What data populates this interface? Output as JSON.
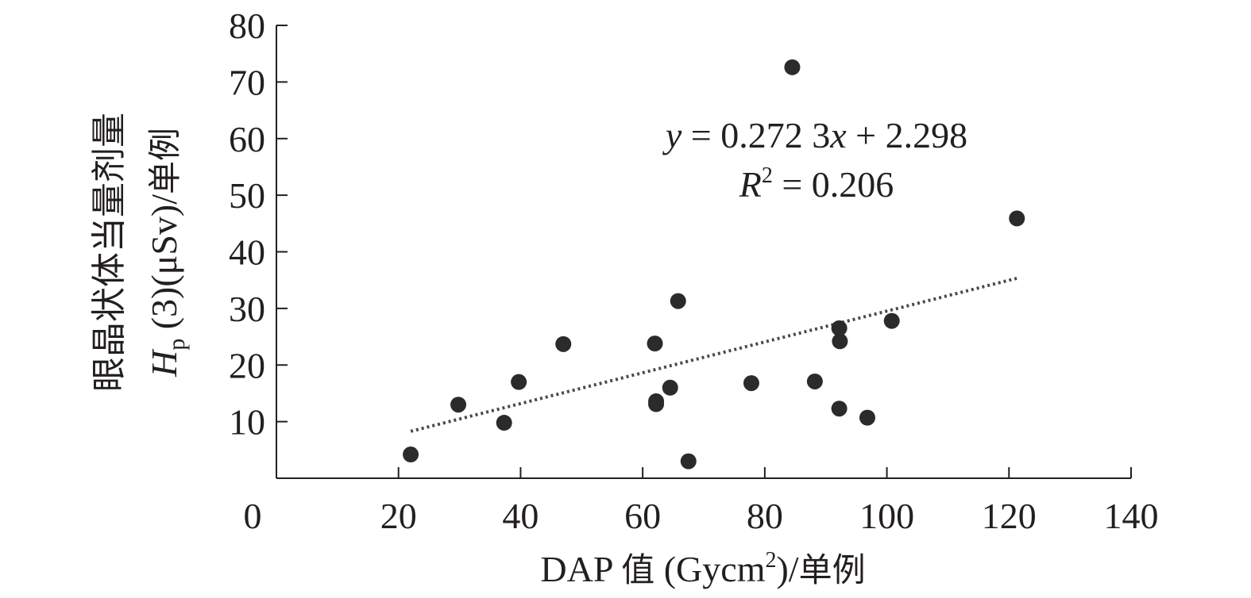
{
  "chart_data": {
    "type": "scatter",
    "xlabel": {
      "latin": "DAP ",
      "cjk_value": "值",
      "unit": " (Gycm",
      "sup": "2",
      "close": ")/",
      "cjk_case": "单例"
    },
    "ylabel": {
      "line1": "眼晶状体当量剂量",
      "italic_h": "H",
      "sub_p": "p",
      "rest": " (3)(μSv)/",
      "cjk_case": "单例"
    },
    "xlim": [
      0,
      140
    ],
    "ylim": [
      0,
      80
    ],
    "xticks": [
      "0",
      "20",
      "40",
      "60",
      "80",
      "100",
      "120",
      "140"
    ],
    "xtick_values": [
      0,
      20,
      40,
      60,
      80,
      100,
      120,
      140
    ],
    "yticks": [
      "10",
      "20",
      "30",
      "40",
      "50",
      "60",
      "70",
      "80"
    ],
    "ytick_values": [
      10,
      20,
      30,
      40,
      50,
      60,
      70,
      80
    ],
    "points": [
      {
        "x": 22,
        "y": 4.2
      },
      {
        "x": 29.8,
        "y": 13
      },
      {
        "x": 37.3,
        "y": 9.8
      },
      {
        "x": 39.7,
        "y": 17
      },
      {
        "x": 47,
        "y": 23.7
      },
      {
        "x": 62,
        "y": 23.8
      },
      {
        "x": 62.2,
        "y": 13.6
      },
      {
        "x": 62.2,
        "y": 13.1
      },
      {
        "x": 64.5,
        "y": 16
      },
      {
        "x": 65.8,
        "y": 31.3
      },
      {
        "x": 67.5,
        "y": 3
      },
      {
        "x": 77.8,
        "y": 16.8
      },
      {
        "x": 84.5,
        "y": 72.6
      },
      {
        "x": 88.2,
        "y": 17.1
      },
      {
        "x": 92.2,
        "y": 26.5
      },
      {
        "x": 92.3,
        "y": 24.2
      },
      {
        "x": 92.2,
        "y": 12.3
      },
      {
        "x": 96.8,
        "y": 10.7
      },
      {
        "x": 100.8,
        "y": 27.8
      },
      {
        "x": 121.3,
        "y": 45.9
      }
    ],
    "trendline": {
      "slope": 0.2723,
      "intercept": 2.298,
      "x_from": 22,
      "x_to": 121.3,
      "style": "dotted"
    },
    "annotation": {
      "eq_y": "y",
      "eq_mid": " = 0.272 3",
      "eq_x": "x",
      "eq_tail": " + 2.298",
      "r_R": "R",
      "r_sup": "2",
      "r_tail": " = 0.206"
    },
    "colors": {
      "marker": "#2b2b2b",
      "axis": "#231f20",
      "trend": "#4a4a4a"
    },
    "grid": false,
    "legend": "none"
  }
}
